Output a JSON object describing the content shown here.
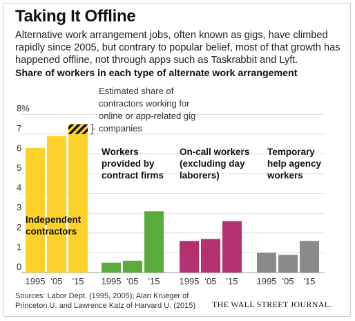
{
  "header": {
    "title": "Taking It Offline",
    "subtitle": "Alternative work arrangement jobs, often known as gigs, have climbed rapidly since 2005, but contrary to popular belief, most of that growth has happened offline, not through apps such as Taskrabbit and Lyft."
  },
  "chart_data": {
    "type": "bar",
    "title": "Share of workers in each type of alternate work arrangement",
    "y_unit": "%",
    "ylim": [
      0,
      8
    ],
    "yticks": [
      "8%",
      "7",
      "6",
      "5",
      "4",
      "3",
      "2",
      "1",
      "0"
    ],
    "grid": true,
    "groups": [
      {
        "name": "Independent contractors",
        "label_lines": [
          "Independent",
          "contractors"
        ],
        "color": "#fcd22a",
        "categories": [
          "1995",
          "'05",
          "'15"
        ],
        "values": [
          6.3,
          6.9,
          7.5
        ],
        "highlight": {
          "category": "'15",
          "value": 0.5,
          "annotation_lines": [
            "Estimated share of",
            "contractors working for",
            "online or app-related gig",
            "companies"
          ]
        }
      },
      {
        "name": "Workers provided by contract firms",
        "label_lines": [
          "Workers",
          "provided by",
          "contract firms"
        ],
        "color": "#5aab3e",
        "categories": [
          "1995",
          "'05",
          "'15"
        ],
        "values": [
          0.5,
          0.6,
          3.1
        ]
      },
      {
        "name": "On-call workers (excluding day laborers)",
        "label_lines": [
          "On-call workers",
          "(excluding day",
          "laborers)"
        ],
        "color": "#b5306f",
        "categories": [
          "1995",
          "'05",
          "'15"
        ],
        "values": [
          1.6,
          1.7,
          2.6
        ]
      },
      {
        "name": "Temporary help agency workers",
        "label_lines": [
          "Temporary",
          "help agency",
          "workers"
        ],
        "color": "#8a8a8a",
        "categories": [
          "1995",
          "'05",
          "'15"
        ],
        "values": [
          1.0,
          0.9,
          1.6
        ]
      }
    ]
  },
  "footer": {
    "source": "Sources: Labor Dept. (1995, 2005); Alan Krueger of Princeton U. and Lawrence Katz of Harvard U. (2015)",
    "credit": "THE WALL STREET JOURNAL."
  }
}
